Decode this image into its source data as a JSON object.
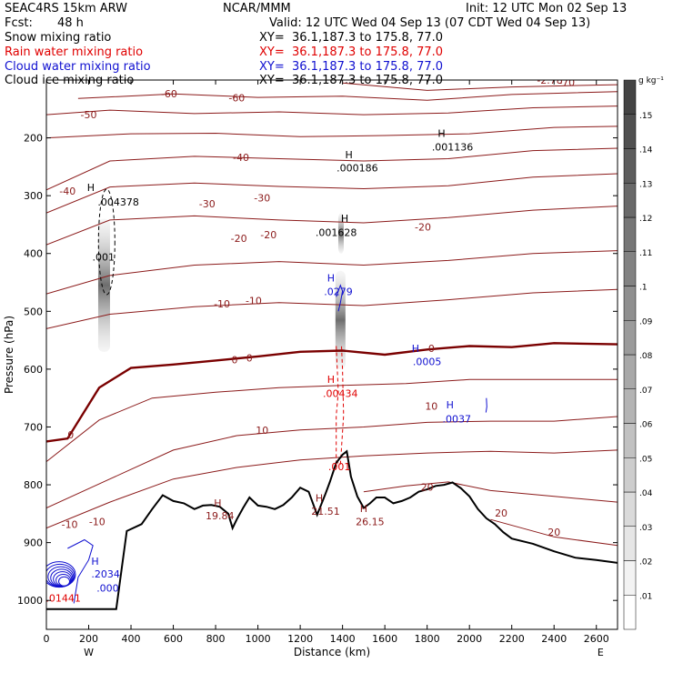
{
  "header": {
    "model": "SEAC4RS 15km ARW",
    "org": "NCAR/MMM",
    "init": "Init: 12 UTC Mon 02 Sep 13",
    "fcst_label": "Fcst:",
    "fcst_value": "48 h",
    "valid": "Valid: 12 UTC Wed 04 Sep 13 (07 CDT Wed 04 Sep 13)",
    "fields": [
      {
        "name": "Snow mixing ratio",
        "xy": "XY=  36.1,187.3 to 175.8, 77.0",
        "color": "#000000"
      },
      {
        "name": "Rain water mixing ratio",
        "xy": "XY=  36.1,187.3 to 175.8, 77.0",
        "color": "#e00000"
      },
      {
        "name": "Cloud water mixing ratio",
        "xy": "XY=  36.1,187.3 to 175.8, 77.0",
        "color": "#1010d0"
      },
      {
        "name": "Cloud ice mixing ratio",
        "xy": "XY=  36.1,187.3 to 175.8, 77.0",
        "color": "#000000"
      }
    ]
  },
  "chart_data": {
    "type": "cross-section",
    "xlabel": "Distance (km)",
    "ylabel": "Pressure (hPa)",
    "xlim": [
      0,
      2700
    ],
    "ylim": [
      1050,
      100
    ],
    "x_ticks": [
      0,
      200,
      400,
      600,
      800,
      1000,
      1200,
      1400,
      1600,
      1800,
      2000,
      2200,
      2400,
      2600
    ],
    "y_ticks": [
      200,
      300,
      400,
      500,
      600,
      700,
      800,
      900,
      1000
    ],
    "y_tick_labels": [
      "200",
      "300",
      "400",
      "500",
      "600",
      "700",
      "800",
      "900",
      "1000"
    ],
    "x_end_labels": {
      "left": "W",
      "right": "E"
    },
    "colorbar": {
      "unit": "g kg⁻¹",
      "levels": [
        ".01",
        ".02",
        ".03",
        ".04",
        ".05",
        ".06",
        ".07",
        ".08",
        ".09",
        ".1",
        ".11",
        ".12",
        ".13",
        ".14",
        ".15"
      ],
      "colors": [
        "#ffffff",
        "#f3f3f3",
        "#e6e6e6",
        "#dadada",
        "#cdcdcd",
        "#c1c1c1",
        "#b4b4b4",
        "#a8a8a8",
        "#9b9b9b",
        "#8f8f8f",
        "#828282",
        "#767676",
        "#696969",
        "#5d5d5d",
        "#505050",
        "#444444"
      ]
    },
    "temperature_contours": {
      "color": "#8b1a1a",
      "zero_color": "#7a0000",
      "lines": [
        {
          "label": "-70",
          "points": [
            [
              1400,
              105
            ],
            [
              1800,
              118
            ],
            [
              2200,
              112
            ],
            [
              2700,
              108
            ]
          ]
        },
        {
          "label": "-60",
          "points": [
            [
              150,
              132
            ],
            [
              600,
              124
            ],
            [
              1000,
              130
            ],
            [
              1400,
              128
            ],
            [
              1800,
              135
            ],
            [
              2200,
              125
            ],
            [
              2700,
              120
            ]
          ]
        },
        {
          "label": "-50",
          "points": [
            [
              0,
              160
            ],
            [
              300,
              152
            ],
            [
              700,
              158
            ],
            [
              1100,
              155
            ],
            [
              1500,
              160
            ],
            [
              1900,
              157
            ],
            [
              2300,
              148
            ],
            [
              2700,
              145
            ]
          ]
        },
        {
          "label": "",
          "points": [
            [
              0,
              200
            ],
            [
              400,
              193
            ],
            [
              800,
              192
            ],
            [
              1200,
              198
            ],
            [
              1600,
              196
            ],
            [
              2000,
              193
            ],
            [
              2400,
              182
            ],
            [
              2700,
              180
            ]
          ]
        },
        {
          "label": "-40",
          "points": [
            [
              0,
              290
            ],
            [
              300,
              240
            ],
            [
              700,
              232
            ],
            [
              1100,
              236
            ],
            [
              1500,
              240
            ],
            [
              1900,
              236
            ],
            [
              2300,
              222
            ],
            [
              2700,
              218
            ]
          ]
        },
        {
          "label": "-30",
          "points": [
            [
              0,
              330
            ],
            [
              300,
              285
            ],
            [
              700,
              278
            ],
            [
              1100,
              284
            ],
            [
              1500,
              288
            ],
            [
              1900,
              283
            ],
            [
              2300,
              268
            ],
            [
              2700,
              262
            ]
          ]
        },
        {
          "label": "-20",
          "points": [
            [
              0,
              385
            ],
            [
              300,
              342
            ],
            [
              700,
              335
            ],
            [
              1100,
              342
            ],
            [
              1500,
              347
            ],
            [
              1900,
              338
            ],
            [
              2300,
              325
            ],
            [
              2700,
              318
            ]
          ]
        },
        {
          "label": "-10",
          "points": [
            [
              0,
              470
            ],
            [
              300,
              438
            ],
            [
              700,
              420
            ],
            [
              1100,
              414
            ],
            [
              1500,
              420
            ],
            [
              1900,
              412
            ],
            [
              2300,
              400
            ],
            [
              2700,
              395
            ]
          ]
        },
        {
          "label": "",
          "points": [
            [
              0,
              530
            ],
            [
              300,
              505
            ],
            [
              700,
              492
            ],
            [
              1100,
              485
            ],
            [
              1500,
              490
            ],
            [
              1900,
              480
            ],
            [
              2300,
              468
            ],
            [
              2700,
              462
            ]
          ]
        },
        {
          "label": "0",
          "points": [
            [
              0,
              725
            ],
            [
              100,
              720
            ],
            [
              250,
              632
            ],
            [
              400,
              598
            ],
            [
              600,
              592
            ],
            [
              800,
              585
            ],
            [
              1000,
              578
            ],
            [
              1200,
              570
            ],
            [
              1400,
              568
            ],
            [
              1600,
              575
            ],
            [
              1800,
              566
            ],
            [
              2000,
              560
            ],
            [
              2200,
              562
            ],
            [
              2400,
              555
            ],
            [
              2700,
              557
            ]
          ],
          "thick": true
        },
        {
          "label": "",
          "points": [
            [
              0,
              760
            ],
            [
              250,
              688
            ],
            [
              500,
              650
            ],
            [
              800,
              640
            ],
            [
              1100,
              632
            ],
            [
              1400,
              628
            ],
            [
              1700,
              625
            ],
            [
              2000,
              618
            ],
            [
              2300,
              618
            ],
            [
              2700,
              618
            ]
          ]
        },
        {
          "label": "10",
          "points": [
            [
              0,
              840
            ],
            [
              300,
              790
            ],
            [
              600,
              740
            ],
            [
              900,
              715
            ],
            [
              1200,
              705
            ],
            [
              1500,
              700
            ],
            [
              1800,
              692
            ],
            [
              2100,
              690
            ],
            [
              2400,
              690
            ],
            [
              2700,
              682
            ]
          ]
        },
        {
          "label": "",
          "points": [
            [
              0,
              875
            ],
            [
              300,
              830
            ],
            [
              600,
              790
            ],
            [
              900,
              770
            ],
            [
              1200,
              757
            ],
            [
              1500,
              750
            ],
            [
              1800,
              745
            ],
            [
              2100,
              742
            ],
            [
              2400,
              745
            ],
            [
              2700,
              740
            ]
          ]
        },
        {
          "label": "20",
          "points": [
            [
              1500,
              812
            ],
            [
              1700,
              802
            ],
            [
              1900,
              795
            ],
            [
              2100,
              810
            ],
            [
              2400,
              820
            ],
            [
              2700,
              830
            ]
          ]
        },
        {
          "label": "",
          "points": [
            [
              2100,
              860
            ],
            [
              2400,
              890
            ],
            [
              2700,
              905
            ]
          ]
        }
      ]
    },
    "terrain": [
      [
        0,
        1015
      ],
      [
        330,
        1015
      ],
      [
        380,
        880
      ],
      [
        450,
        868
      ],
      [
        500,
        842
      ],
      [
        550,
        818
      ],
      [
        600,
        828
      ],
      [
        650,
        832
      ],
      [
        700,
        842
      ],
      [
        740,
        836
      ],
      [
        780,
        835
      ],
      [
        820,
        838
      ],
      [
        860,
        850
      ],
      [
        880,
        875
      ],
      [
        900,
        860
      ],
      [
        930,
        840
      ],
      [
        960,
        822
      ],
      [
        1000,
        836
      ],
      [
        1040,
        838
      ],
      [
        1080,
        842
      ],
      [
        1120,
        835
      ],
      [
        1160,
        822
      ],
      [
        1200,
        805
      ],
      [
        1240,
        812
      ],
      [
        1280,
        852
      ],
      [
        1320,
        815
      ],
      [
        1340,
        795
      ],
      [
        1370,
        762
      ],
      [
        1400,
        748
      ],
      [
        1420,
        742
      ],
      [
        1440,
        786
      ],
      [
        1470,
        820
      ],
      [
        1500,
        840
      ],
      [
        1530,
        832
      ],
      [
        1560,
        822
      ],
      [
        1600,
        822
      ],
      [
        1640,
        832
      ],
      [
        1680,
        828
      ],
      [
        1720,
        822
      ],
      [
        1760,
        812
      ],
      [
        1800,
        808
      ],
      [
        1840,
        802
      ],
      [
        1880,
        800
      ],
      [
        1920,
        796
      ],
      [
        1960,
        806
      ],
      [
        2000,
        820
      ],
      [
        2040,
        842
      ],
      [
        2080,
        858
      ],
      [
        2120,
        868
      ],
      [
        2160,
        882
      ],
      [
        2200,
        893
      ],
      [
        2300,
        902
      ],
      [
        2400,
        915
      ],
      [
        2500,
        926
      ],
      [
        2600,
        930
      ],
      [
        2700,
        935
      ]
    ],
    "annotations": [
      {
        "text": "H",
        "x": 1868,
        "y": 198,
        "color": "#000000"
      },
      {
        "text": ".001136",
        "x": 1920,
        "y": 222,
        "color": "#000000"
      },
      {
        "text": "H",
        "x": 1430,
        "y": 235,
        "color": "#000000"
      },
      {
        "text": ".000186",
        "x": 1470,
        "y": 258,
        "color": "#000000"
      },
      {
        "text": "H",
        "x": 210,
        "y": 292,
        "color": "#000000"
      },
      {
        "text": ".004378",
        "x": 340,
        "y": 317,
        "color": "#000000"
      },
      {
        "text": "H",
        "x": 1410,
        "y": 345,
        "color": "#000000"
      },
      {
        "text": ".001628",
        "x": 1370,
        "y": 370,
        "color": "#000000"
      },
      {
        "text": ".001",
        "x": 270,
        "y": 412,
        "color": "#000000"
      },
      {
        "text": "H",
        "x": 1345,
        "y": 448,
        "color": "#1010d0"
      },
      {
        "text": ".0279",
        "x": 1380,
        "y": 472,
        "color": "#1010d0"
      },
      {
        "text": "H",
        "x": 1745,
        "y": 570,
        "color": "#1010d0"
      },
      {
        "text": ".0005",
        "x": 1800,
        "y": 593,
        "color": "#1010d0"
      },
      {
        "text": "H",
        "x": 1345,
        "y": 624,
        "color": "#e00000"
      },
      {
        "text": ".00434",
        "x": 1390,
        "y": 648,
        "color": "#e00000"
      },
      {
        "text": "H",
        "x": 1908,
        "y": 668,
        "color": "#1010d0"
      },
      {
        "text": ".0037",
        "x": 1940,
        "y": 692,
        "color": "#1010d0"
      },
      {
        "text": ".001",
        "x": 1385,
        "y": 775,
        "color": "#e00000"
      },
      {
        "text": "H",
        "x": 810,
        "y": 838,
        "color": "#8b1a1a"
      },
      {
        "text": "19.84",
        "x": 820,
        "y": 860,
        "color": "#8b1a1a"
      },
      {
        "text": "H",
        "x": 1290,
        "y": 829,
        "color": "#8b1a1a"
      },
      {
        "text": "21.51",
        "x": 1320,
        "y": 852,
        "color": "#8b1a1a"
      },
      {
        "text": "H",
        "x": 1500,
        "y": 847,
        "color": "#8b1a1a"
      },
      {
        "text": "26.15",
        "x": 1530,
        "y": 870,
        "color": "#8b1a1a"
      },
      {
        "text": "H",
        "x": 230,
        "y": 938,
        "color": "#1010d0"
      },
      {
        "text": ".2034",
        "x": 280,
        "y": 960,
        "color": "#1010d0"
      },
      {
        "text": ".000",
        "x": 290,
        "y": 985,
        "color": "#1010d0"
      },
      {
        "text": ".01441",
        "x": 80,
        "y": 1002,
        "color": "#e00000"
      }
    ],
    "temp_labels": [
      {
        "text": "-60",
        "x": 580,
        "y": 130
      },
      {
        "text": "-60",
        "x": 900,
        "y": 137
      },
      {
        "text": "-50",
        "x": 200,
        "y": 166
      },
      {
        "text": "-40",
        "x": 100,
        "y": 298
      },
      {
        "text": "-40",
        "x": 920,
        "y": 240
      },
      {
        "text": "-30",
        "x": 760,
        "y": 320
      },
      {
        "text": "-30",
        "x": 1020,
        "y": 310
      },
      {
        "text": "-20",
        "x": 910,
        "y": 380
      },
      {
        "text": "-20",
        "x": 1050,
        "y": 374
      },
      {
        "text": "-20",
        "x": 1780,
        "y": 360
      },
      {
        "text": "-10",
        "x": 830,
        "y": 493
      },
      {
        "text": "-10",
        "x": 980,
        "y": 488
      },
      {
        "text": "0",
        "x": 890,
        "y": 590
      },
      {
        "text": "0",
        "x": 960,
        "y": 587
      },
      {
        "text": "0",
        "x": 1820,
        "y": 570
      },
      {
        "text": "0",
        "x": 115,
        "y": 720
      },
      {
        "text": "10",
        "x": 1020,
        "y": 712
      },
      {
        "text": "10",
        "x": 1820,
        "y": 670
      },
      {
        "text": "-10",
        "x": 110,
        "y": 875
      },
      {
        "text": "-10",
        "x": 240,
        "y": 870
      },
      {
        "text": "20",
        "x": 1800,
        "y": 810
      },
      {
        "text": "20",
        "x": 2150,
        "y": 855
      },
      {
        "text": "20",
        "x": 2400,
        "y": 888
      },
      {
        "text": "-70",
        "x": 2460,
        "y": 110
      },
      {
        "text": "-2.78",
        "x": 2380,
        "y": 106
      }
    ],
    "clouds": [
      {
        "x": 275,
        "y1": 340,
        "y2": 570,
        "w": 26
      },
      {
        "x": 1388,
        "y1": 430,
        "y2": 600,
        "w": 22
      },
      {
        "x": 1380,
        "y1": 330,
        "y2": 400,
        "w": 12
      }
    ]
  }
}
